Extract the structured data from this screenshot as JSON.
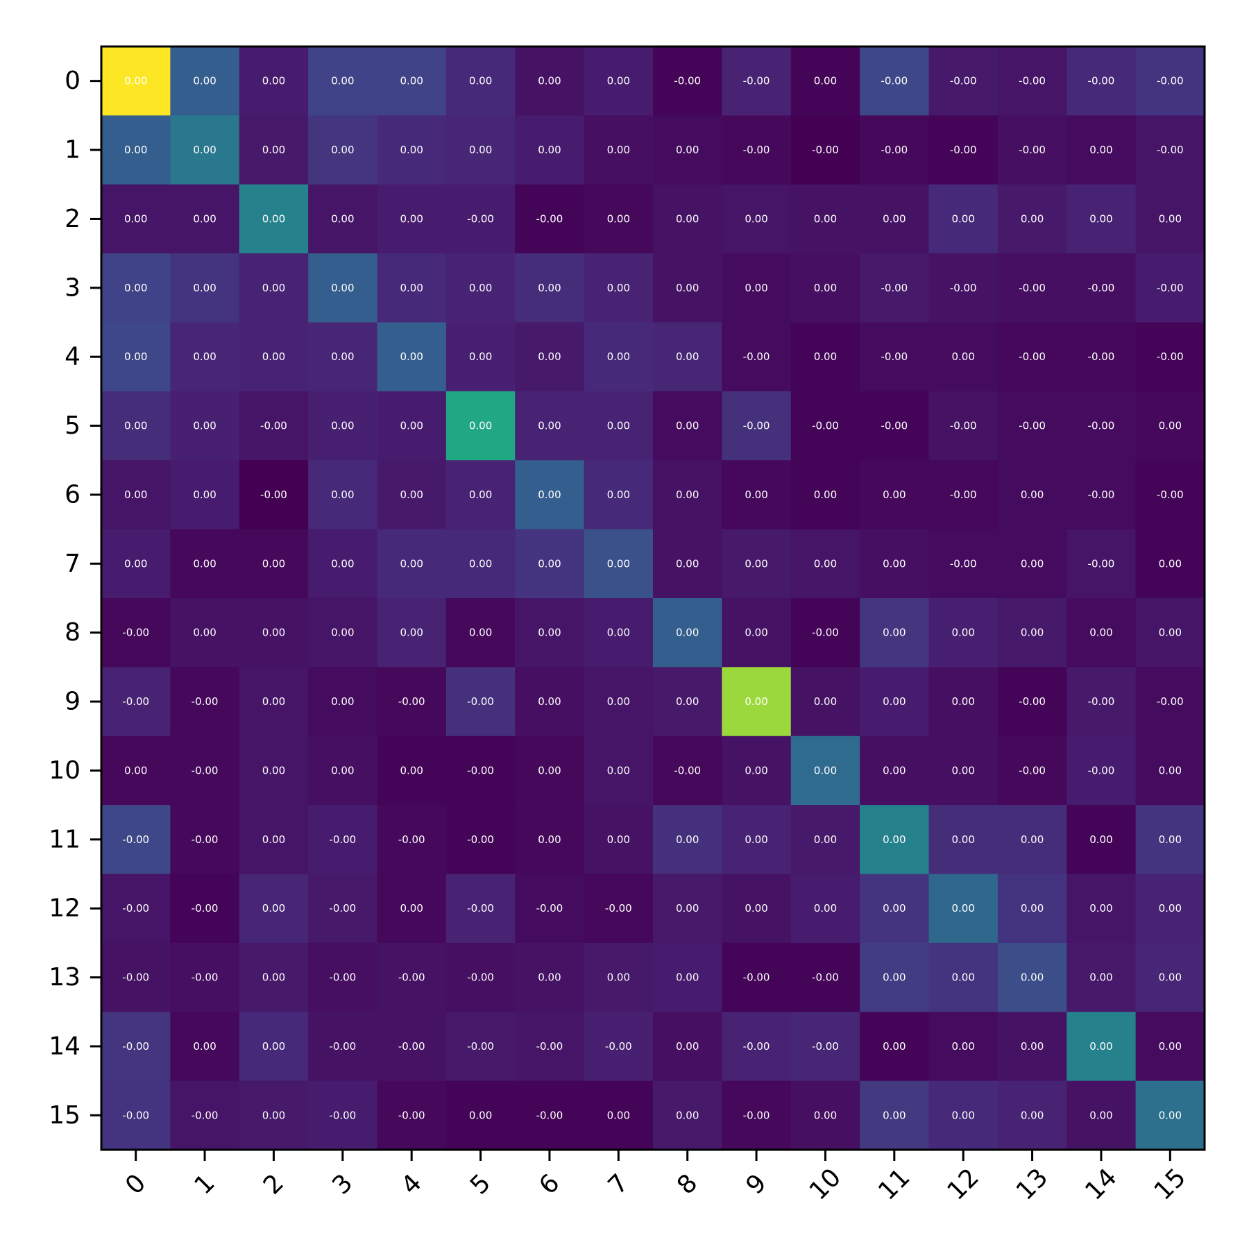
{
  "chart_data": {
    "type": "heatmap",
    "title": "",
    "xlabel": "",
    "ylabel": "",
    "x_categories": [
      "0",
      "1",
      "2",
      "3",
      "4",
      "5",
      "6",
      "7",
      "8",
      "9",
      "10",
      "11",
      "12",
      "13",
      "14",
      "15"
    ],
    "y_categories": [
      "0",
      "1",
      "2",
      "3",
      "4",
      "5",
      "6",
      "7",
      "8",
      "9",
      "10",
      "11",
      "12",
      "13",
      "14",
      "15"
    ],
    "colormap": "viridis",
    "color_range": [
      0,
      1
    ],
    "grid": false,
    "legend": "none",
    "x_tick_rotation_deg": -45,
    "intensity": [
      [
        1.0,
        0.3,
        0.08,
        0.2,
        0.2,
        0.12,
        0.05,
        0.08,
        0.01,
        0.1,
        0.01,
        0.22,
        0.07,
        0.06,
        0.12,
        0.15
      ],
      [
        0.3,
        0.4,
        0.07,
        0.16,
        0.12,
        0.11,
        0.08,
        0.04,
        0.03,
        0.02,
        0.0,
        0.02,
        0.01,
        0.04,
        0.03,
        0.06
      ],
      [
        0.06,
        0.06,
        0.44,
        0.06,
        0.08,
        0.08,
        0.01,
        0.02,
        0.05,
        0.06,
        0.05,
        0.05,
        0.12,
        0.07,
        0.1,
        0.06
      ],
      [
        0.2,
        0.15,
        0.1,
        0.3,
        0.12,
        0.1,
        0.13,
        0.1,
        0.05,
        0.03,
        0.04,
        0.07,
        0.05,
        0.04,
        0.04,
        0.08
      ],
      [
        0.22,
        0.11,
        0.1,
        0.11,
        0.3,
        0.09,
        0.07,
        0.12,
        0.11,
        0.03,
        0.01,
        0.03,
        0.03,
        0.02,
        0.02,
        0.01
      ],
      [
        0.13,
        0.09,
        0.06,
        0.09,
        0.08,
        0.6,
        0.1,
        0.1,
        0.03,
        0.14,
        0.01,
        0.01,
        0.05,
        0.03,
        0.03,
        0.02
      ],
      [
        0.06,
        0.08,
        0.0,
        0.12,
        0.07,
        0.1,
        0.3,
        0.12,
        0.05,
        0.02,
        0.01,
        0.02,
        0.02,
        0.03,
        0.03,
        0.01
      ],
      [
        0.08,
        0.02,
        0.02,
        0.08,
        0.12,
        0.12,
        0.15,
        0.25,
        0.05,
        0.07,
        0.06,
        0.04,
        0.03,
        0.03,
        0.06,
        0.01
      ],
      [
        0.02,
        0.05,
        0.05,
        0.06,
        0.1,
        0.02,
        0.06,
        0.08,
        0.3,
        0.05,
        0.01,
        0.16,
        0.09,
        0.07,
        0.03,
        0.06
      ],
      [
        0.1,
        0.02,
        0.06,
        0.03,
        0.02,
        0.14,
        0.04,
        0.06,
        0.07,
        0.85,
        0.05,
        0.08,
        0.04,
        0.01,
        0.07,
        0.03
      ],
      [
        0.02,
        0.02,
        0.06,
        0.04,
        0.01,
        0.01,
        0.02,
        0.06,
        0.02,
        0.05,
        0.35,
        0.04,
        0.04,
        0.02,
        0.08,
        0.03
      ],
      [
        0.22,
        0.02,
        0.06,
        0.08,
        0.02,
        0.01,
        0.02,
        0.05,
        0.14,
        0.1,
        0.07,
        0.44,
        0.13,
        0.13,
        0.01,
        0.15
      ],
      [
        0.06,
        0.01,
        0.11,
        0.07,
        0.02,
        0.1,
        0.03,
        0.02,
        0.07,
        0.05,
        0.08,
        0.15,
        0.34,
        0.15,
        0.06,
        0.1
      ],
      [
        0.05,
        0.04,
        0.07,
        0.04,
        0.05,
        0.04,
        0.05,
        0.07,
        0.08,
        0.01,
        0.01,
        0.18,
        0.15,
        0.24,
        0.07,
        0.11
      ],
      [
        0.16,
        0.02,
        0.12,
        0.05,
        0.05,
        0.07,
        0.06,
        0.09,
        0.04,
        0.1,
        0.11,
        0.01,
        0.03,
        0.05,
        0.44,
        0.03
      ],
      [
        0.15,
        0.06,
        0.07,
        0.08,
        0.02,
        0.01,
        0.01,
        0.01,
        0.07,
        0.02,
        0.04,
        0.17,
        0.12,
        0.1,
        0.05,
        0.37
      ]
    ],
    "labels": [
      [
        "0.00",
        "0.00",
        "0.00",
        "0.00",
        "0.00",
        "0.00",
        "0.00",
        "0.00",
        "-0.00",
        "-0.00",
        "0.00",
        "-0.00",
        "-0.00",
        "-0.00",
        "-0.00",
        "-0.00"
      ],
      [
        "0.00",
        "0.00",
        "0.00",
        "0.00",
        "0.00",
        "0.00",
        "0.00",
        "0.00",
        "0.00",
        "-0.00",
        "-0.00",
        "-0.00",
        "-0.00",
        "-0.00",
        "0.00",
        "-0.00"
      ],
      [
        "0.00",
        "0.00",
        "0.00",
        "0.00",
        "0.00",
        "-0.00",
        "-0.00",
        "0.00",
        "0.00",
        "0.00",
        "0.00",
        "0.00",
        "0.00",
        "0.00",
        "0.00",
        "0.00"
      ],
      [
        "0.00",
        "0.00",
        "0.00",
        "0.00",
        "0.00",
        "0.00",
        "0.00",
        "0.00",
        "0.00",
        "0.00",
        "0.00",
        "-0.00",
        "-0.00",
        "-0.00",
        "-0.00",
        "-0.00"
      ],
      [
        "0.00",
        "0.00",
        "0.00",
        "0.00",
        "0.00",
        "0.00",
        "0.00",
        "0.00",
        "0.00",
        "-0.00",
        "0.00",
        "-0.00",
        "0.00",
        "-0.00",
        "-0.00",
        "-0.00"
      ],
      [
        "0.00",
        "0.00",
        "-0.00",
        "0.00",
        "0.00",
        "0.00",
        "0.00",
        "0.00",
        "0.00",
        "-0.00",
        "-0.00",
        "-0.00",
        "-0.00",
        "-0.00",
        "-0.00",
        "0.00"
      ],
      [
        "0.00",
        "0.00",
        "-0.00",
        "0.00",
        "0.00",
        "0.00",
        "0.00",
        "0.00",
        "0.00",
        "0.00",
        "0.00",
        "0.00",
        "-0.00",
        "0.00",
        "-0.00",
        "-0.00"
      ],
      [
        "0.00",
        "0.00",
        "0.00",
        "0.00",
        "0.00",
        "0.00",
        "0.00",
        "0.00",
        "0.00",
        "0.00",
        "0.00",
        "0.00",
        "-0.00",
        "0.00",
        "-0.00",
        "0.00"
      ],
      [
        "-0.00",
        "0.00",
        "0.00",
        "0.00",
        "0.00",
        "0.00",
        "0.00",
        "0.00",
        "0.00",
        "0.00",
        "-0.00",
        "0.00",
        "0.00",
        "0.00",
        "0.00",
        "0.00"
      ],
      [
        "-0.00",
        "-0.00",
        "0.00",
        "0.00",
        "-0.00",
        "-0.00",
        "0.00",
        "0.00",
        "0.00",
        "0.00",
        "0.00",
        "0.00",
        "0.00",
        "-0.00",
        "-0.00",
        "-0.00"
      ],
      [
        "0.00",
        "-0.00",
        "0.00",
        "0.00",
        "0.00",
        "-0.00",
        "0.00",
        "0.00",
        "-0.00",
        "0.00",
        "0.00",
        "0.00",
        "0.00",
        "-0.00",
        "-0.00",
        "0.00"
      ],
      [
        "-0.00",
        "-0.00",
        "0.00",
        "-0.00",
        "-0.00",
        "-0.00",
        "0.00",
        "0.00",
        "0.00",
        "0.00",
        "0.00",
        "0.00",
        "0.00",
        "0.00",
        "0.00",
        "0.00"
      ],
      [
        "-0.00",
        "-0.00",
        "0.00",
        "-0.00",
        "0.00",
        "-0.00",
        "-0.00",
        "-0.00",
        "0.00",
        "0.00",
        "0.00",
        "0.00",
        "0.00",
        "0.00",
        "0.00",
        "0.00"
      ],
      [
        "-0.00",
        "-0.00",
        "0.00",
        "-0.00",
        "-0.00",
        "-0.00",
        "0.00",
        "0.00",
        "0.00",
        "-0.00",
        "-0.00",
        "0.00",
        "0.00",
        "0.00",
        "0.00",
        "0.00"
      ],
      [
        "-0.00",
        "0.00",
        "0.00",
        "-0.00",
        "-0.00",
        "-0.00",
        "-0.00",
        "-0.00",
        "0.00",
        "-0.00",
        "-0.00",
        "0.00",
        "0.00",
        "0.00",
        "0.00",
        "0.00"
      ],
      [
        "-0.00",
        "-0.00",
        "0.00",
        "-0.00",
        "-0.00",
        "0.00",
        "-0.00",
        "0.00",
        "0.00",
        "-0.00",
        "0.00",
        "0.00",
        "0.00",
        "0.00",
        "0.00",
        "0.00"
      ]
    ]
  }
}
